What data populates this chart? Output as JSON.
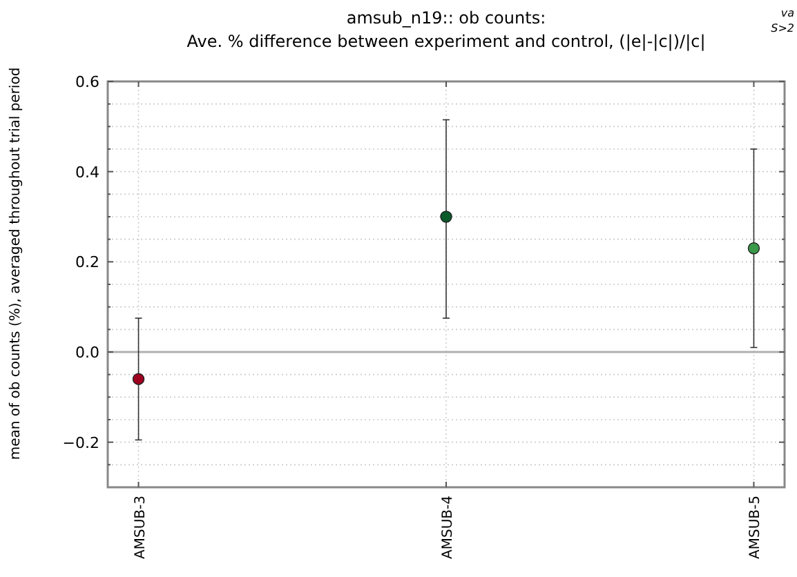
{
  "chart_data": {
    "type": "scatter",
    "title": "amsub_n19:: ob counts:",
    "subtitle": "Ave. % difference between experiment and control, (|e|-|c|)/|c|",
    "ylabel": "mean of ob counts (%), averaged throughout trial period",
    "annotations": [
      "va",
      "S>2"
    ],
    "categories": [
      "AMSUB-3",
      "AMSUB-4",
      "AMSUB-5"
    ],
    "series": [
      {
        "values": [
          -0.06,
          0.3,
          0.23
        ],
        "colors": [
          "#a00020",
          "#0a5a2a",
          "#3a9a4a"
        ],
        "errors": [
          [
            -0.195,
            0.075
          ],
          [
            0.075,
            0.515
          ],
          [
            0.01,
            0.45
          ]
        ]
      }
    ],
    "ylim": [
      -0.3,
      0.6
    ],
    "yticks": [
      {
        "value": -0.25,
        "label": null
      },
      {
        "value": -0.2,
        "label": "−0.2"
      },
      {
        "value": -0.15,
        "label": null
      },
      {
        "value": -0.1,
        "label": null
      },
      {
        "value": -0.05,
        "label": null
      },
      {
        "value": 0,
        "label": "0.0"
      },
      {
        "value": 0.05,
        "label": null
      },
      {
        "value": 0.1,
        "label": null
      },
      {
        "value": 0.15,
        "label": null
      },
      {
        "value": 0.2,
        "label": "0.2"
      },
      {
        "value": 0.25,
        "label": null
      },
      {
        "value": 0.3,
        "label": null
      },
      {
        "value": 0.35,
        "label": null
      },
      {
        "value": 0.4,
        "label": "0.4"
      },
      {
        "value": 0.45,
        "label": null
      },
      {
        "value": 0.5,
        "label": null
      },
      {
        "value": 0.55,
        "label": null
      },
      {
        "value": 0.6,
        "label": "0.6"
      }
    ],
    "ref_lines": [
      {
        "axis": "y",
        "value": 0,
        "color": "#b0b0b0"
      }
    ],
    "grid": true,
    "marker": "circle"
  }
}
